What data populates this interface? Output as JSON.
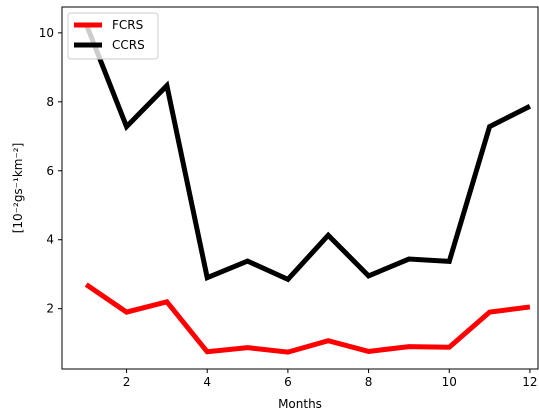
{
  "chart_data": {
    "type": "line",
    "title": "",
    "xlabel": "Months",
    "ylabel": "[10⁻²gs⁻¹km⁻²]",
    "xlim": [
      0.4,
      12.2
    ],
    "ylim": [
      0.25,
      10.75
    ],
    "x": [
      1,
      2,
      3,
      4,
      5,
      6,
      7,
      8,
      9,
      10,
      11,
      12
    ],
    "xticks": [
      2,
      4,
      6,
      8,
      10,
      12
    ],
    "yticks": [
      2,
      4,
      6,
      8,
      10
    ],
    "grid": false,
    "legend": "top-left",
    "series": [
      {
        "name": "FCRS",
        "color": "#ff0000",
        "values": [
          2.7,
          1.9,
          2.2,
          0.75,
          0.87,
          0.74,
          1.07,
          0.76,
          0.9,
          0.88,
          1.9,
          2.05
        ]
      },
      {
        "name": "CCRS",
        "color": "#000000",
        "values": [
          10.25,
          7.28,
          8.47,
          2.9,
          3.38,
          2.85,
          4.13,
          2.95,
          3.44,
          3.37,
          7.28,
          7.87
        ]
      }
    ]
  }
}
